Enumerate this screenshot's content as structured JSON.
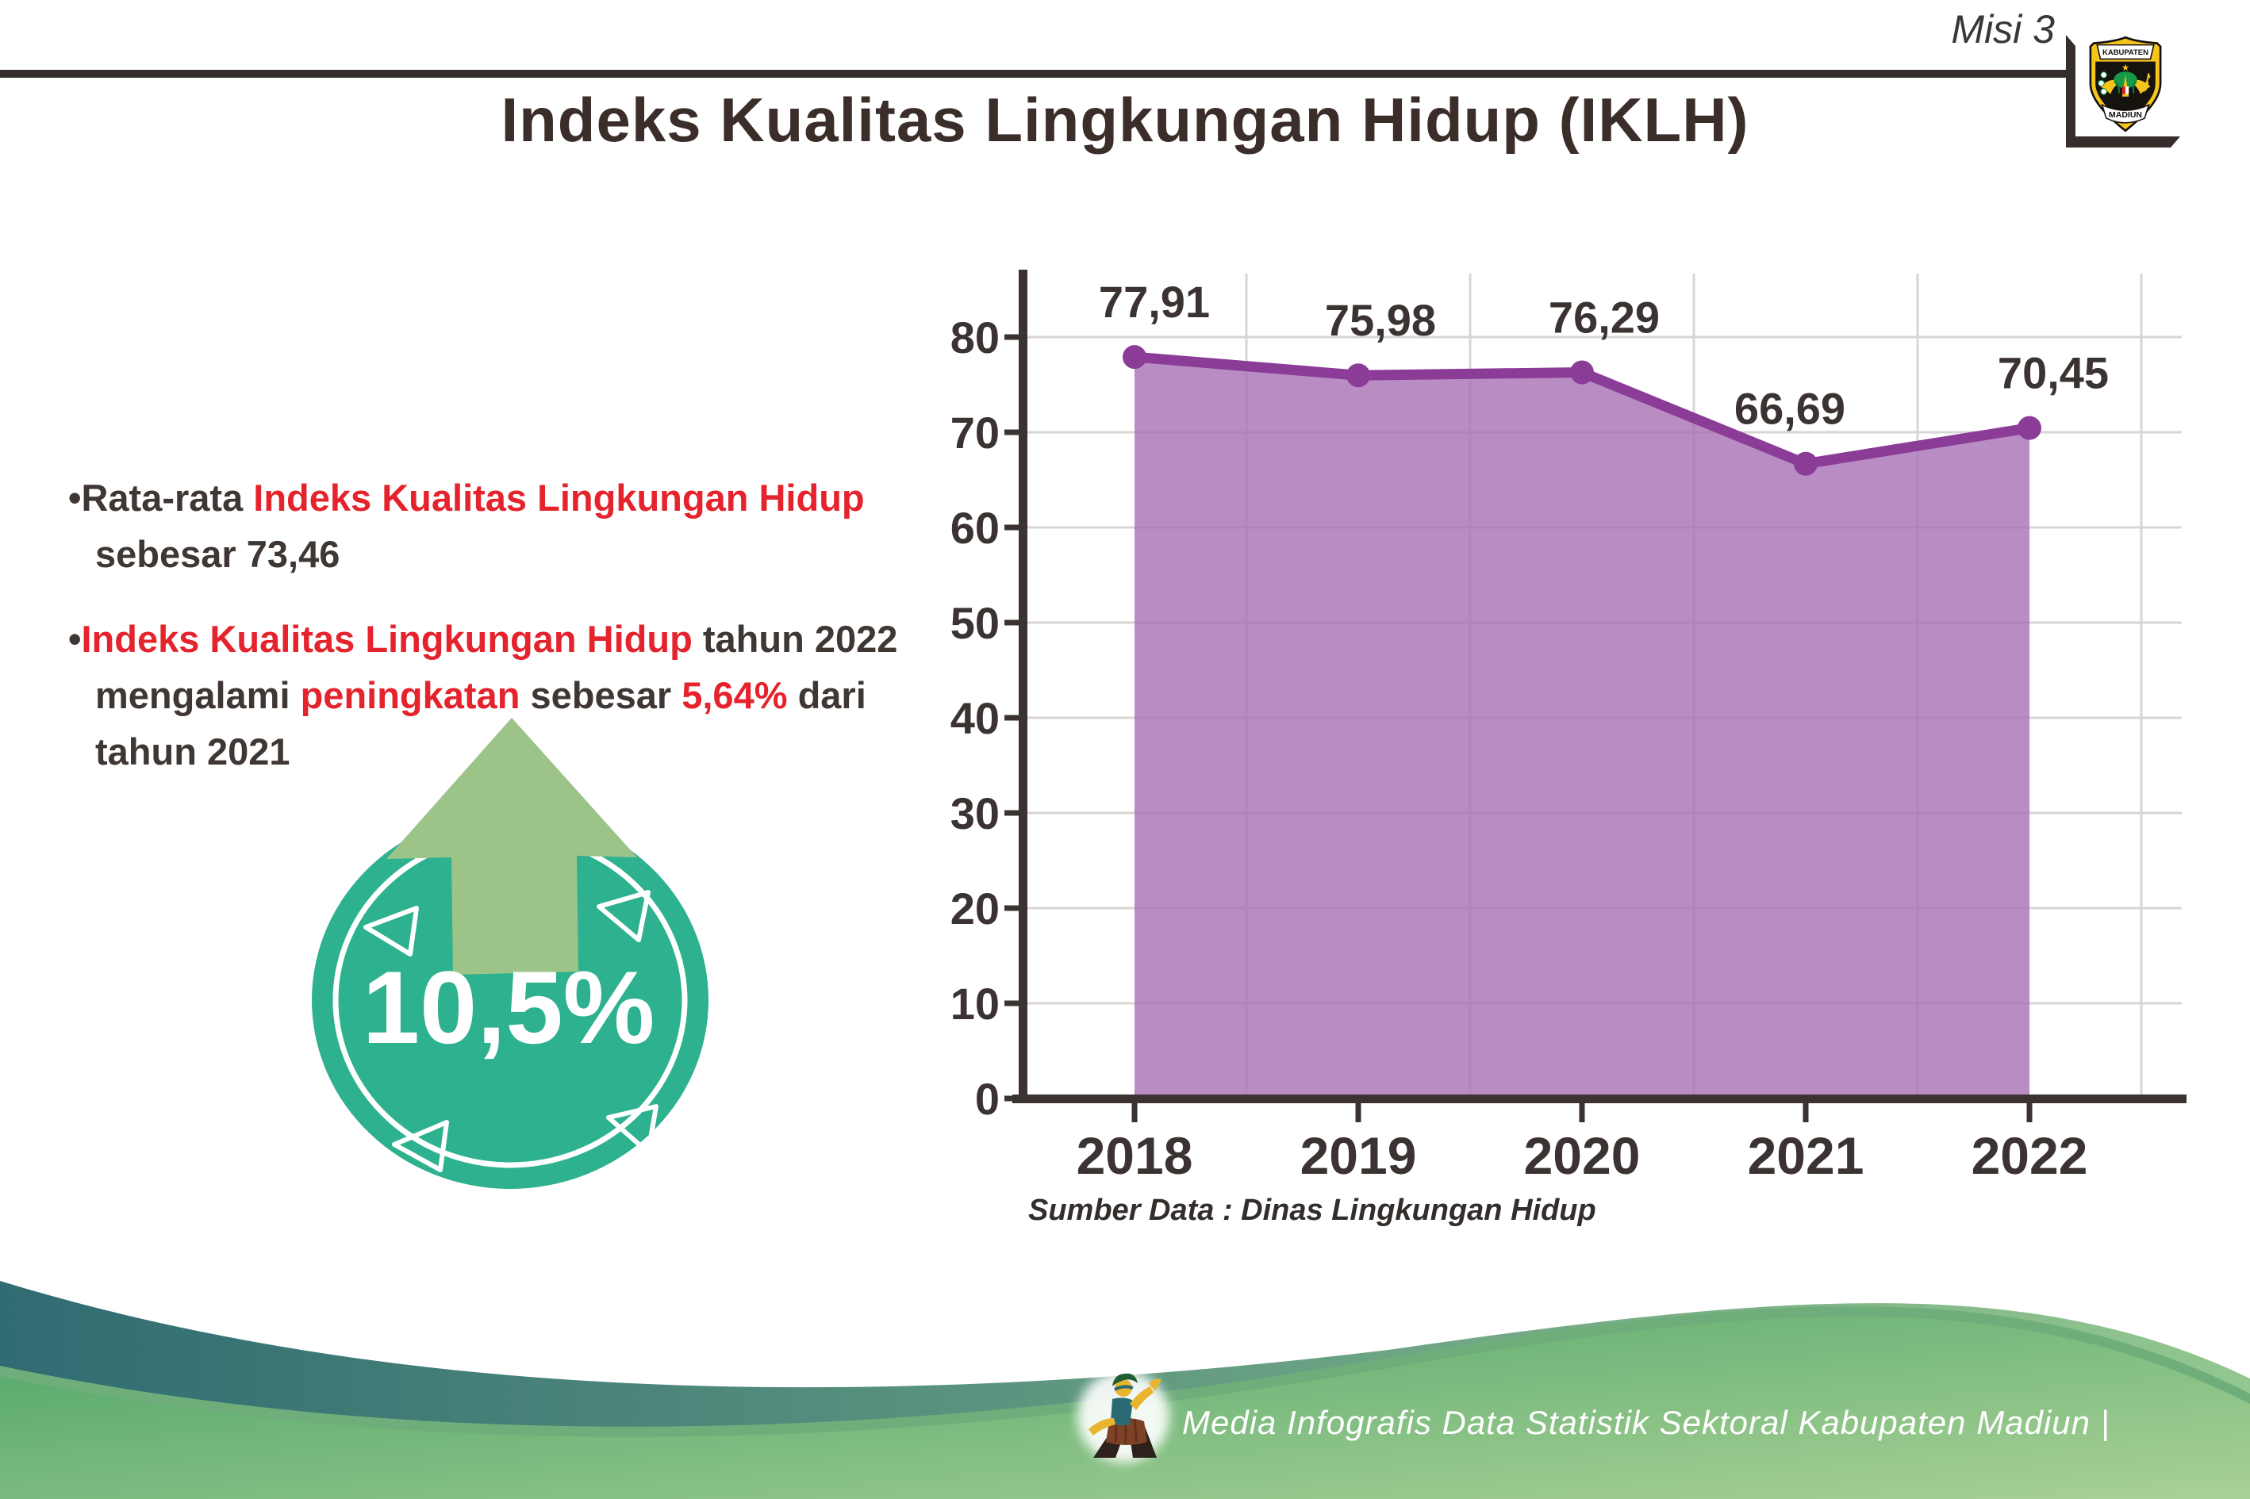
{
  "header": {
    "misi_label": "Misi 3",
    "logo": {
      "top_text": "KABUPATEN",
      "bottom_text": "MADIUN"
    }
  },
  "title": "Indeks Kualitas Lingkungan Hidup (IKLH)",
  "bullets": [
    {
      "lines": [
        [
          {
            "t": "•",
            "c": "dark"
          },
          {
            "t": "Rata-rata ",
            "c": "dark"
          },
          {
            "t": "Indeks Kualitas Lingkungan Hidup",
            "c": "red"
          }
        ],
        [
          {
            "t": "sebesar 73,46",
            "c": "dark"
          }
        ]
      ]
    },
    {
      "lines": [
        [
          {
            "t": "•",
            "c": "dark"
          },
          {
            "t": "Indeks Kualitas Lingkungan Hidup",
            "c": "red"
          },
          {
            "t": " tahun 2022",
            "c": "dark"
          }
        ],
        [
          {
            "t": "mengalami ",
            "c": "dark"
          },
          {
            "t": "peningkatan",
            "c": "red"
          },
          {
            "t": " sebesar ",
            "c": "dark"
          },
          {
            "t": "5,64%",
            "c": "red"
          },
          {
            "t": " dari",
            "c": "dark"
          }
        ],
        [
          {
            "t": "tahun 2021",
            "c": "dark"
          }
        ]
      ]
    }
  ],
  "badge": {
    "value": "10,5%",
    "circle_color": "#2db18f",
    "arrow_color": "#9cc489",
    "arrow_outline": "#2c3e63"
  },
  "chart_data": {
    "type": "area",
    "categories": [
      "2018",
      "2019",
      "2020",
      "2021",
      "2022"
    ],
    "values": [
      77.91,
      75.98,
      76.29,
      66.69,
      70.45
    ],
    "labels": [
      "77,91",
      "75,98",
      "76,29",
      "66,69",
      "70,45"
    ],
    "title": "",
    "xlabel": "",
    "ylabel": "",
    "ylim": [
      0,
      80
    ],
    "ytick_step": 10,
    "grid": true,
    "legend": false,
    "area_color": "#a96fb5",
    "line_color": "#8a3c96",
    "label_dx": [
      25,
      28,
      28,
      -20,
      30
    ],
    "source_note": "Sumber Data : Dinas Lingkungan Hidup"
  },
  "footer": {
    "text": "Media Infografis Data Statistik Sektoral Kabupaten Madiun |"
  }
}
